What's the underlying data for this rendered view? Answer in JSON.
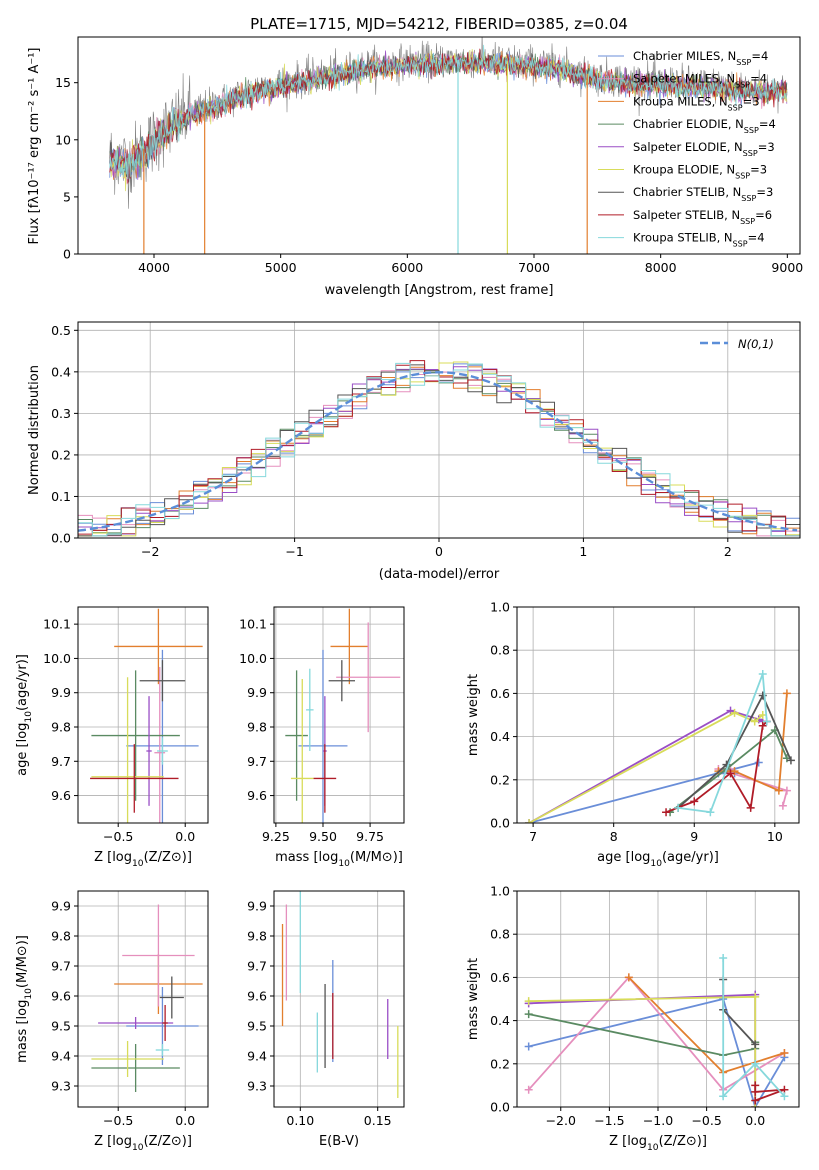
{
  "colors": {
    "chabrier_miles": "#6a8ed8",
    "salpeter_miles": "#e58fbd",
    "kroupa_miles": "#e27f2e",
    "chabrier_elodie": "#5a8a62",
    "salpeter_elodie": "#9a4fc6",
    "kroupa_elodie": "#d8dc5a",
    "chabrier_stelib": "#555555",
    "salpeter_stelib": "#b01c28",
    "kroupa_stelib": "#86d8dc",
    "spectrum_data": "#808080",
    "normal_curve": "#5b8ed8"
  },
  "chart_data": [
    {
      "id": "spectrum",
      "type": "line",
      "title": "PLATE=1715, MJD=54212, FIBERID=0385, z=0.04",
      "xlabel": "wavelength [Angstrom, rest frame]",
      "ylabel": "Flux [fλ10⁻¹⁷ erg cm⁻² s⁻¹ A⁻¹]",
      "xlim": [
        3400,
        9100
      ],
      "ylim": [
        0,
        19
      ],
      "xticks": [
        "4000",
        "5000",
        "6000",
        "7000",
        "8000",
        "9000"
      ],
      "yticks": [
        "0",
        "5",
        "10",
        "15"
      ],
      "grid": false,
      "legend": "top-right",
      "series": [
        {
          "name": "Chabrier MILES, N_SSP=4",
          "base": "Chabrier MILES, N",
          "sub": "SSP",
          "tail": "=4"
        },
        {
          "name": "Salpeter MILES, N_SSP=4",
          "base": "Salpeter MILES, N",
          "sub": "SSP",
          "tail": "=4"
        },
        {
          "name": "Kroupa MILES, N_SSP=3",
          "base": "Kroupa MILES, N",
          "sub": "SSP",
          "tail": "=3"
        },
        {
          "name": "Chabrier ELODIE, N_SSP=4",
          "base": "Chabrier ELODIE, N",
          "sub": "SSP",
          "tail": "=4"
        },
        {
          "name": "Salpeter ELODIE, N_SSP=3",
          "base": "Salpeter ELODIE, N",
          "sub": "SSP",
          "tail": "=3"
        },
        {
          "name": "Kroupa ELODIE, N_SSP=3",
          "base": "Kroupa ELODIE, N",
          "sub": "SSP",
          "tail": "=3"
        },
        {
          "name": "Chabrier STELIB, N_SSP=3",
          "base": "Chabrier STELIB, N",
          "sub": "SSP",
          "tail": "=3"
        },
        {
          "name": "Salpeter STELIB, N_SSP=6",
          "base": "Salpeter STELIB, N",
          "sub": "SSP",
          "tail": "=6"
        },
        {
          "name": "Kroupa STELIB, N_SSP=4",
          "base": "Kroupa STELIB, N",
          "sub": "SSP",
          "tail": "=4"
        }
      ],
      "continuum": {
        "x": [
          3650,
          3800,
          3950,
          4100,
          4300,
          4500,
          4800,
          5100,
          5400,
          5700,
          6000,
          6300,
          6600,
          6900,
          7200,
          7500,
          7800,
          8100,
          8400,
          8700,
          9000
        ],
        "y": [
          8.5,
          8.0,
          9.5,
          11.0,
          12.5,
          13.2,
          14.5,
          15.2,
          15.8,
          16.5,
          16.8,
          17.0,
          17.0,
          16.8,
          16.5,
          15.5,
          15.2,
          15.0,
          14.8,
          14.5,
          14.5
        ]
      },
      "dropouts": [
        {
          "x": 3920,
          "color_key": "kroupa_miles"
        },
        {
          "x": 4400,
          "color_key": "kroupa_miles"
        },
        {
          "x": 6400,
          "color_key": "kroupa_stelib"
        },
        {
          "x": 6790,
          "color_key": "kroupa_elodie"
        },
        {
          "x": 7420,
          "color_key": "kroupa_miles"
        }
      ]
    },
    {
      "id": "residuals",
      "type": "histogram",
      "xlabel": "(data-model)/error",
      "ylabel": "Normed distribution",
      "xlim": [
        -2.5,
        2.5
      ],
      "ylim": [
        0,
        0.52
      ],
      "xticks": [
        -2,
        -1,
        0,
        1,
        2
      ],
      "yticks": [
        "0.0",
        "0.1",
        "0.2",
        "0.3",
        "0.4",
        "0.5"
      ],
      "grid": true,
      "legend": "top-right",
      "legend_label": "N(0,1)",
      "bin_width": 0.1
    },
    {
      "id": "age_vs_Z",
      "type": "errorbar",
      "xlabel_base": "Z [log",
      "xlabel_sub": "10",
      "xlabel_tail": "(Z/Z⊙)]",
      "ylabel_base": "age  [log",
      "ylabel_sub": "10",
      "ylabel_tail": "(age/yr)]",
      "xlim": [
        -0.8,
        0.17
      ],
      "ylim": [
        9.52,
        10.15
      ],
      "xticks": [
        -0.5,
        0.0
      ],
      "xtick_labels": [
        "−0.5",
        "0.0"
      ],
      "yticks": [
        9.6,
        9.7,
        9.8,
        9.9,
        10.0,
        10.1
      ],
      "ytick_labels": [
        "9.6",
        "9.7",
        "9.8",
        "9.9",
        "10.0",
        "10.1"
      ],
      "grid": true,
      "points": [
        {
          "x": -0.2,
          "y": 10.035,
          "xerr": 0.33,
          "yerr": 0.11,
          "color_key": "kroupa_miles"
        },
        {
          "x": -0.17,
          "y": 9.745,
          "xerr": 0.27,
          "yerr": 0.28,
          "color_key": "chabrier_miles"
        },
        {
          "x": -0.19,
          "y": 9.725,
          "xerr": 0.04,
          "yerr": 0.25,
          "color_key": "salpeter_miles"
        },
        {
          "x": -0.37,
          "y": 9.775,
          "xerr": 0.33,
          "yerr": 0.19,
          "color_key": "chabrier_elodie"
        },
        {
          "x": -0.27,
          "y": 9.73,
          "xerr": 0.02,
          "yerr": 0.16,
          "color_key": "salpeter_elodie"
        },
        {
          "x": -0.43,
          "y": 9.655,
          "xerr": 0.27,
          "yerr": 0.29,
          "color_key": "kroupa_elodie"
        },
        {
          "x": -0.17,
          "y": 9.935,
          "xerr": 0.17,
          "yerr": 0.06,
          "color_key": "chabrier_stelib"
        },
        {
          "x": -0.38,
          "y": 9.65,
          "xerr": 0.33,
          "yerr": 0.1,
          "color_key": "salpeter_stelib"
        },
        {
          "x": -0.17,
          "y": 9.73,
          "xerr": 0.04,
          "yerr": 0.04,
          "color_key": "kroupa_stelib"
        }
      ]
    },
    {
      "id": "age_vs_mass",
      "type": "errorbar",
      "xlabel_base": "mass [log",
      "xlabel_sub": "10",
      "xlabel_tail": "(M/M⊙)]",
      "xlim": [
        9.24,
        9.93
      ],
      "ylim": [
        9.52,
        10.15
      ],
      "xticks": [
        9.25,
        9.5,
        9.75
      ],
      "xtick_labels": [
        "9.25",
        "9.50",
        "9.75"
      ],
      "yticks": [
        9.6,
        9.7,
        9.8,
        9.9,
        10.0,
        10.1
      ],
      "ytick_labels": [
        "9.6",
        "9.7",
        "9.8",
        "9.9",
        "10.0",
        "10.1"
      ],
      "grid": true,
      "points": [
        {
          "x": 9.64,
          "y": 10.035,
          "xerr": 0.1,
          "yerr": 0.11,
          "color_key": "kroupa_miles"
        },
        {
          "x": 9.5,
          "y": 9.745,
          "xerr": 0.13,
          "yerr": 0.28,
          "color_key": "chabrier_miles"
        },
        {
          "x": 9.74,
          "y": 9.945,
          "xerr": 0.17,
          "yerr": 0.16,
          "color_key": "salpeter_miles"
        },
        {
          "x": 9.36,
          "y": 9.775,
          "xerr": 0.06,
          "yerr": 0.19,
          "color_key": "chabrier_elodie"
        },
        {
          "x": 9.51,
          "y": 9.73,
          "xerr": 0.01,
          "yerr": 0.16,
          "color_key": "salpeter_elodie"
        },
        {
          "x": 9.39,
          "y": 9.65,
          "xerr": 0.06,
          "yerr": 0.29,
          "color_key": "kroupa_elodie"
        },
        {
          "x": 9.6,
          "y": 9.935,
          "xerr": 0.07,
          "yerr": 0.06,
          "color_key": "chabrier_stelib"
        },
        {
          "x": 9.51,
          "y": 9.65,
          "xerr": 0.06,
          "yerr": 0.1,
          "color_key": "salpeter_stelib"
        },
        {
          "x": 9.43,
          "y": 9.85,
          "xerr": 0.02,
          "yerr": 0.12,
          "color_key": "kroupa_stelib"
        }
      ]
    },
    {
      "id": "weight_vs_age",
      "type": "line",
      "xlabel_base": "age  [log",
      "xlabel_sub": "10",
      "xlabel_tail": "(age/yr)]",
      "ylabel": "mass weight",
      "xlim": [
        6.8,
        10.3
      ],
      "ylim": [
        0,
        1
      ],
      "xticks": [
        7,
        8,
        9,
        10
      ],
      "xtick_labels": [
        "7",
        "8",
        "9",
        "10"
      ],
      "yticks": [
        0,
        0.2,
        0.4,
        0.6,
        0.8,
        1.0
      ],
      "ytick_labels": [
        "0.0",
        "0.2",
        "0.4",
        "0.6",
        "0.8",
        "1.0"
      ],
      "grid": true,
      "series": [
        {
          "color_key": "chabrier_miles",
          "x": [
            6.95,
            9.8,
            9.3,
            9.5
          ],
          "y": [
            0.0,
            0.28,
            0.23,
            0.23
          ]
        },
        {
          "color_key": "salpeter_miles",
          "x": [
            10.1,
            10.15,
            9.3,
            9.45
          ],
          "y": [
            0.08,
            0.15,
            0.25,
            0.25
          ]
        },
        {
          "color_key": "kroupa_miles",
          "x": [
            10.15,
            10.05,
            9.5,
            9.3
          ],
          "y": [
            0.6,
            0.15,
            0.24,
            0.24
          ]
        },
        {
          "color_key": "chabrier_elodie",
          "x": [
            8.7,
            9.4,
            10.0,
            10.15
          ],
          "y": [
            0.05,
            0.25,
            0.43,
            0.3
          ]
        },
        {
          "color_key": "salpeter_elodie",
          "x": [
            6.95,
            9.45,
            9.8,
            9.85
          ],
          "y": [
            0.0,
            0.52,
            0.48,
            0.47
          ]
        },
        {
          "color_key": "kroupa_elodie",
          "x": [
            6.95,
            9.5,
            9.75,
            9.85
          ],
          "y": [
            0.0,
            0.51,
            0.47,
            0.5
          ]
        },
        {
          "color_key": "chabrier_stelib",
          "x": [
            8.8,
            9.4,
            9.85,
            10.2
          ],
          "y": [
            0.07,
            0.27,
            0.59,
            0.29
          ]
        },
        {
          "color_key": "salpeter_stelib",
          "x": [
            8.65,
            9.0,
            9.45,
            9.7,
            9.85,
            9.9
          ],
          "y": [
            0.05,
            0.1,
            0.23,
            0.07,
            0.45,
            0.47
          ]
        },
        {
          "color_key": "kroupa_stelib",
          "x": [
            8.8,
            9.2,
            9.85,
            9.9
          ],
          "y": [
            0.07,
            0.05,
            0.69,
            0.47
          ]
        }
      ]
    },
    {
      "id": "mass_vs_Z",
      "type": "errorbar",
      "xlabel_base": "Z [log",
      "xlabel_sub": "10",
      "xlabel_tail": "(Z/Z⊙)]",
      "ylabel_base": "mass [log",
      "ylabel_sub": "10",
      "ylabel_tail": "(M/M⊙)]",
      "xlim": [
        -0.8,
        0.17
      ],
      "ylim": [
        9.23,
        9.95
      ],
      "xticks": [
        -0.5,
        0.0
      ],
      "xtick_labels": [
        "−0.5",
        "0.0"
      ],
      "yticks": [
        9.3,
        9.4,
        9.5,
        9.6,
        9.7,
        9.8,
        9.9
      ],
      "ytick_labels": [
        "9.3",
        "9.4",
        "9.5",
        "9.6",
        "9.7",
        "9.8",
        "9.9"
      ],
      "grid": true,
      "points": [
        {
          "x": -0.2,
          "y": 9.64,
          "xerr": 0.33,
          "yerr": 0.1,
          "color_key": "kroupa_miles"
        },
        {
          "x": -0.17,
          "y": 9.5,
          "xerr": 0.27,
          "yerr": 0.13,
          "color_key": "chabrier_miles"
        },
        {
          "x": -0.2,
          "y": 9.735,
          "xerr": 0.27,
          "yerr": 0.17,
          "color_key": "salpeter_miles"
        },
        {
          "x": -0.37,
          "y": 9.36,
          "xerr": 0.33,
          "yerr": 0.08,
          "color_key": "chabrier_elodie"
        },
        {
          "x": -0.37,
          "y": 9.51,
          "xerr": 0.28,
          "yerr": 0.02,
          "color_key": "salpeter_elodie"
        },
        {
          "x": -0.43,
          "y": 9.39,
          "xerr": 0.27,
          "yerr": 0.06,
          "color_key": "kroupa_elodie"
        },
        {
          "x": -0.1,
          "y": 9.595,
          "xerr": 0.09,
          "yerr": 0.07,
          "color_key": "chabrier_stelib"
        },
        {
          "x": -0.15,
          "y": 9.51,
          "xerr": 0.02,
          "yerr": 0.06,
          "color_key": "salpeter_stelib"
        },
        {
          "x": -0.17,
          "y": 9.42,
          "xerr": 0.05,
          "yerr": 0.02,
          "color_key": "kroupa_stelib"
        }
      ]
    },
    {
      "id": "mass_vs_ebv",
      "type": "errorbar",
      "xlabel": "E(B-V)",
      "xlim": [
        0.083,
        0.167
      ],
      "ylim": [
        9.23,
        9.95
      ],
      "xticks": [
        0.1,
        0.15
      ],
      "xtick_labels": [
        "0.10",
        "0.15"
      ],
      "yticks": [
        9.3,
        9.4,
        9.5,
        9.6,
        9.7,
        9.8,
        9.9
      ],
      "ytick_labels": [
        "9.3",
        "9.4",
        "9.5",
        "9.6",
        "9.7",
        "9.8",
        "9.9"
      ],
      "grid": true,
      "points": [
        {
          "x": 0.0885,
          "y": 9.67,
          "xerr": 0,
          "yerr": 0.17,
          "color_key": "kroupa_miles"
        },
        {
          "x": 0.121,
          "y": 9.55,
          "xerr": 0,
          "yerr": 0.17,
          "color_key": "chabrier_miles"
        },
        {
          "x": 0.091,
          "y": 9.745,
          "xerr": 0,
          "yerr": 0.16,
          "color_key": "salpeter_miles"
        },
        {
          "x": 0.1,
          "y": 9.78,
          "xerr": 0,
          "yerr": 0.17,
          "color_key": "kroupa_stelib"
        },
        {
          "x": 0.111,
          "y": 9.445,
          "xerr": 0,
          "yerr": 0.1,
          "color_key": "kroupa_stelib"
        },
        {
          "x": 0.116,
          "y": 9.5,
          "xerr": 0,
          "yerr": 0.14,
          "color_key": "chabrier_stelib"
        },
        {
          "x": 0.121,
          "y": 9.5,
          "xerr": 0,
          "yerr": 0.11,
          "color_key": "salpeter_stelib"
        },
        {
          "x": 0.1565,
          "y": 9.49,
          "xerr": 0,
          "yerr": 0.1,
          "color_key": "salpeter_elodie"
        },
        {
          "x": 0.163,
          "y": 9.38,
          "xerr": 0,
          "yerr": 0.12,
          "color_key": "kroupa_elodie"
        }
      ]
    },
    {
      "id": "weight_vs_Z",
      "type": "line",
      "xlabel_base": "Z [log",
      "xlabel_sub": "10",
      "xlabel_tail": "(Z/Z⊙)]",
      "ylabel": "mass weight",
      "xlim": [
        -2.45,
        0.45
      ],
      "ylim": [
        0,
        1
      ],
      "xticks": [
        -2.0,
        -1.5,
        -1.0,
        -0.5,
        0.0
      ],
      "xtick_labels": [
        "−2.0",
        "−1.5",
        "−1.0",
        "−0.5",
        "0.0"
      ],
      "yticks": [
        0,
        0.2,
        0.4,
        0.6,
        0.8,
        1.0
      ],
      "ytick_labels": [
        "0.0",
        "0.2",
        "0.4",
        "0.6",
        "0.8",
        "1.0"
      ],
      "grid": true,
      "series": [
        {
          "color_key": "chabrier_miles",
          "x": [
            -2.33,
            -0.33,
            0.0,
            0.3
          ],
          "y": [
            0.28,
            0.5,
            0.0,
            0.23
          ]
        },
        {
          "color_key": "salpeter_miles",
          "x": [
            -2.33,
            -1.3,
            -0.33,
            0.3
          ],
          "y": [
            0.08,
            0.6,
            0.08,
            0.25
          ]
        },
        {
          "color_key": "kroupa_miles",
          "x": [
            -1.3,
            -0.33,
            0.3
          ],
          "y": [
            0.6,
            0.16,
            0.25
          ]
        },
        {
          "color_key": "chabrier_elodie",
          "x": [
            -2.33,
            -0.33,
            0.0,
            0.0
          ],
          "y": [
            0.43,
            0.24,
            0.27,
            0.3
          ]
        },
        {
          "color_key": "salpeter_elodie",
          "x": [
            -2.33,
            0.0,
            0.0
          ],
          "y": [
            0.48,
            0.52,
            0.0
          ]
        },
        {
          "color_key": "kroupa_elodie",
          "x": [
            -2.33,
            -0.0,
            0.0
          ],
          "y": [
            0.49,
            0.51,
            0.0
          ]
        },
        {
          "color_key": "chabrier_stelib",
          "x": [
            -0.33,
            -0.33,
            0.0
          ],
          "y": [
            0.59,
            0.45,
            0.29
          ]
        },
        {
          "color_key": "salpeter_stelib",
          "x": [
            0.0,
            0.3,
            0.0,
            0.0
          ],
          "y": [
            0.03,
            0.08,
            0.07,
            0.1
          ]
        },
        {
          "color_key": "kroupa_stelib",
          "x": [
            -0.33,
            -0.33,
            0.0,
            0.3
          ],
          "y": [
            0.69,
            0.05,
            0.2,
            0.05
          ]
        }
      ]
    }
  ]
}
